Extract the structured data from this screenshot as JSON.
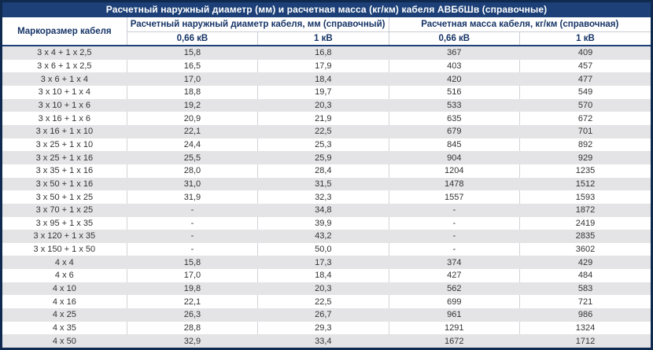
{
  "table": {
    "title": "Расчетный наружный диаметр (мм) и расчетная масса (кг/км) кабеля АВБбШв (справочные)",
    "columns": {
      "marka": "Маркоразмер кабеля",
      "group_diameter": "Расчетный наружный диаметр кабеля, мм (справочный)",
      "group_mass": "Расчетная масса кабеля, кг/км (справочная)",
      "sub_headers": [
        "0,66 кВ",
        "1 кВ",
        "0,66 кВ",
        "1 кВ"
      ]
    },
    "rows": [
      [
        "3 x 4 + 1 x 2,5",
        "15,8",
        "16,8",
        "367",
        "409"
      ],
      [
        "3 x 6 + 1 x 2,5",
        "16,5",
        "17,9",
        "403",
        "457"
      ],
      [
        "3 x 6 + 1 x 4",
        "17,0",
        "18,4",
        "420",
        "477"
      ],
      [
        "3 x 10 + 1 x 4",
        "18,8",
        "19,7",
        "516",
        "549"
      ],
      [
        "3 x 10 + 1 x 6",
        "19,2",
        "20,3",
        "533",
        "570"
      ],
      [
        "3 x 16 + 1 x 6",
        "20,9",
        "21,9",
        "635",
        "672"
      ],
      [
        "3 x 16 + 1 x 10",
        "22,1",
        "22,5",
        "679",
        "701"
      ],
      [
        "3 x 25 + 1 x 10",
        "24,4",
        "25,3",
        "845",
        "892"
      ],
      [
        "3 x 25 + 1 x 16",
        "25,5",
        "25,9",
        "904",
        "929"
      ],
      [
        "3 x 35 + 1 x 16",
        "28,0",
        "28,4",
        "1204",
        "1235"
      ],
      [
        "3 x 50 + 1 x 16",
        "31,0",
        "31,5",
        "1478",
        "1512"
      ],
      [
        "3 x 50 + 1 x 25",
        "31,9",
        "32,3",
        "1557",
        "1593"
      ],
      [
        "3 x 70 + 1 x 25",
        "-",
        "34,8",
        "-",
        "1872"
      ],
      [
        "3 x 95 + 1 x 35",
        "-",
        "39,9",
        "-",
        "2419"
      ],
      [
        "3 x 120 + 1 x 35",
        "-",
        "43,2",
        "-",
        "2835"
      ],
      [
        "3 x 150 + 1 x 50",
        "-",
        "50,0",
        "-",
        "3602"
      ],
      [
        "4 x 4",
        "15,8",
        "17,3",
        "374",
        "429"
      ],
      [
        "4 x 6",
        "17,0",
        "18,4",
        "427",
        "484"
      ],
      [
        "4 x 10",
        "19,8",
        "20,3",
        "562",
        "583"
      ],
      [
        "4 x 16",
        "22,1",
        "22,5",
        "699",
        "721"
      ],
      [
        "4 x 25",
        "26,3",
        "26,7",
        "961",
        "986"
      ],
      [
        "4 x 35",
        "28,8",
        "29,3",
        "1291",
        "1324"
      ],
      [
        "4 x 50",
        "32,9",
        "33,4",
        "1672",
        "1712"
      ]
    ]
  },
  "colors": {
    "title_background": "#1c4077",
    "outer_border": "#10294e",
    "header_text": "#163467",
    "row_stripe": "#e4e4e6",
    "data_text": "#333333"
  }
}
